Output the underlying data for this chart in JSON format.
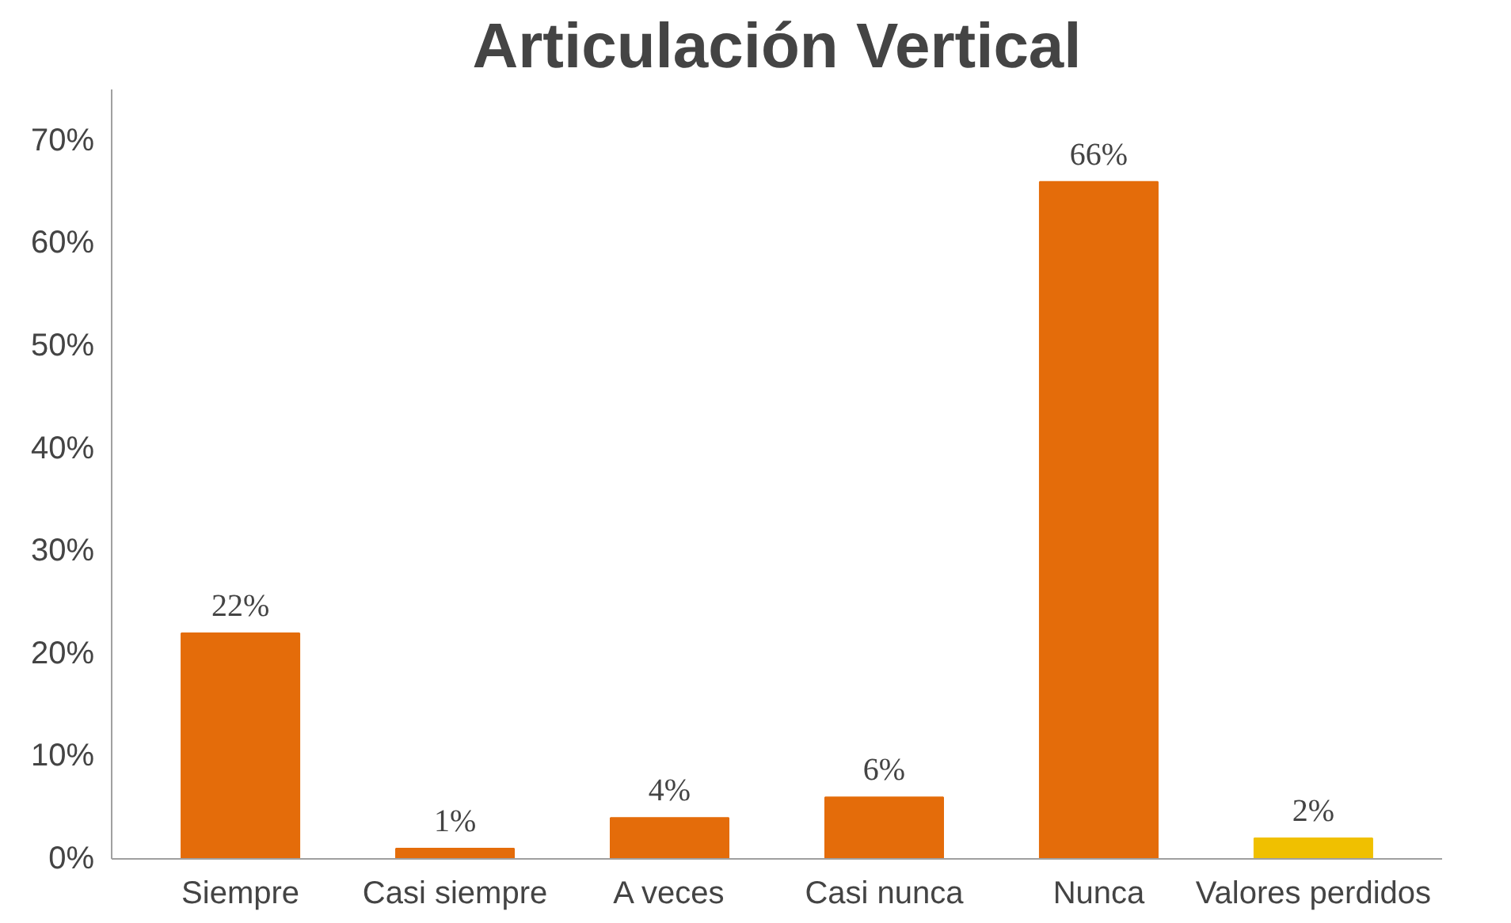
{
  "chart_data": {
    "type": "bar",
    "title": "Articulación Vertical",
    "categories": [
      "Siempre",
      "Casi siempre",
      "A veces",
      "Casi nunca",
      "Nunca",
      "Valores perdidos"
    ],
    "values": [
      22,
      1,
      4,
      6,
      66,
      2
    ],
    "colors": [
      "#e46c0a",
      "#e46c0a",
      "#e46c0a",
      "#e46c0a",
      "#e46c0a",
      "#f0c000"
    ],
    "value_labels": [
      "22%",
      "1%",
      "4%",
      "6%",
      "66%",
      "2%"
    ],
    "ylim": [
      0,
      75
    ],
    "yticks": [
      {
        "value": 0,
        "label": "0%"
      },
      {
        "value": 10,
        "label": "10%"
      },
      {
        "value": 20,
        "label": "20%"
      },
      {
        "value": 30,
        "label": "30%"
      },
      {
        "value": 40,
        "label": "40%"
      },
      {
        "value": 50,
        "label": "50%"
      },
      {
        "value": 60,
        "label": "60%"
      },
      {
        "value": 70,
        "label": "70%"
      }
    ],
    "grid": false
  }
}
